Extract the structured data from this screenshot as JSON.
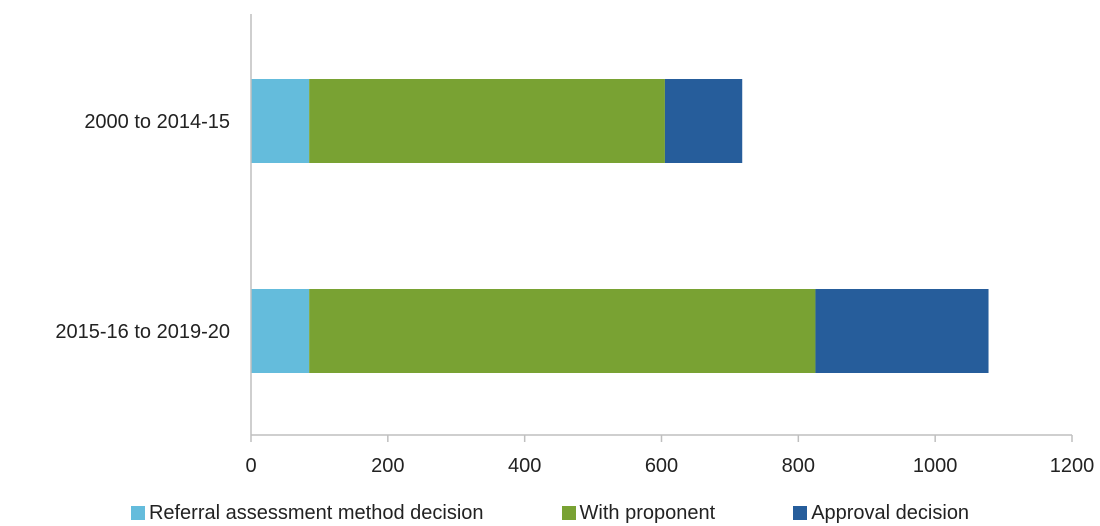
{
  "chart_data": {
    "type": "bar",
    "orientation": "horizontal",
    "stacked": true,
    "categories": [
      "2000 to 2014-15",
      "2015-16 to 2019-20"
    ],
    "series": [
      {
        "name": "Referral assessment method decision",
        "values": [
          85,
          85
        ],
        "color": "#64bcdc"
      },
      {
        "name": "With proponent",
        "values": [
          520,
          740
        ],
        "color": "#79a233"
      },
      {
        "name": "Approval decision",
        "values": [
          113,
          253
        ],
        "color": "#265d9b"
      }
    ],
    "xlim": [
      0,
      1200
    ],
    "xticks": [
      "0",
      "200",
      "400",
      "600",
      "800",
      "1000",
      "1200"
    ],
    "grid": false,
    "legend_position": "bottom"
  }
}
